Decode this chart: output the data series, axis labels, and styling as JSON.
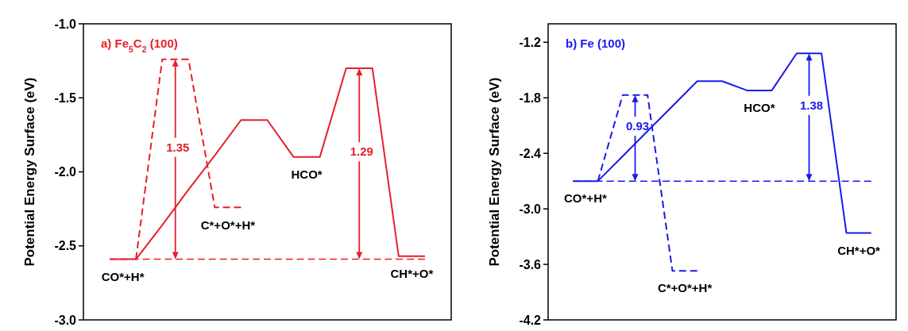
{
  "chart_data": [
    {
      "type": "line",
      "title": "a)  Fe$_{5}$C$_{2}$ (100)",
      "ylabel": "Potential Energy Surface (eV)",
      "categories": [
        null,
        null,
        null,
        null,
        null,
        null,
        null,
        null,
        null,
        null,
        null,
        null,
        null
      ],
      "ylim": [
        -3,
        -1
      ],
      "yticks": [
        {
          "value": -1,
          "label": "-1.0"
        },
        {
          "value": -1.5,
          "label": "-1.5"
        },
        {
          "value": -2,
          "label": "-2.0"
        },
        {
          "value": -2.5,
          "label": "-2.5"
        },
        {
          "value": -3,
          "label": "-3.0"
        }
      ],
      "tick_labels": "y",
      "grid": false,
      "marker": "none",
      "series": [
        {
          "color": "#e6202a",
          "line_style": "solid",
          "values": [
            -2.59,
            -2.59,
            -2.36,
            -2.12,
            -1.89,
            -1.65,
            -1.65,
            -1.9,
            -1.9,
            -1.3,
            -1.3,
            -2.57,
            -2.57
          ],
          "value_labels": [
            null,
            "CO*+H*",
            null,
            null,
            null,
            null,
            null,
            null,
            "HCO*",
            null,
            null,
            null,
            "CH*+O*"
          ]
        },
        {
          "color": "#e6202a",
          "line_style": "dashed",
          "values": [
            null,
            -2.59,
            -1.24,
            -1.24,
            -2.24,
            -2.24,
            null,
            null,
            null,
            null,
            null,
            null,
            null
          ],
          "value_labels": [
            null,
            null,
            null,
            null,
            null,
            "C*+O*+H*",
            null,
            null,
            null,
            null,
            null,
            null,
            null
          ]
        }
      ],
      "ref_lines": [
        {
          "axis": "y",
          "value": -2.59,
          "color": "#e6202a",
          "line_style": "dashed"
        }
      ],
      "annotations": [
        "1.29",
        "1.35"
      ]
    },
    {
      "type": "line",
      "title": "b) Fe (100)",
      "ylabel": "Potential Energy Surface (eV)",
      "categories": [
        null,
        null,
        null,
        null,
        null,
        null,
        null,
        null,
        null,
        null,
        null,
        null,
        null
      ],
      "ylim": [
        -4.2,
        -1.0
      ],
      "yticks": [
        {
          "value": -1.2,
          "label": "-1.2"
        },
        {
          "value": -1.8,
          "label": "-1.8"
        },
        {
          "value": -2.4,
          "label": "-2.4"
        },
        {
          "value": -3,
          "label": "-3.0"
        },
        {
          "value": -3.6,
          "label": "-3.6"
        },
        {
          "value": -4.2,
          "label": "-4.2"
        }
      ],
      "tick_labels": "y",
      "grid": false,
      "marker": "none",
      "series": [
        {
          "color": "#1a1aef",
          "line_style": "solid",
          "values": [
            -2.7,
            -2.7,
            -2.43,
            -2.16,
            -1.89,
            -1.62,
            -1.62,
            -1.72,
            -1.72,
            -1.32,
            -1.32,
            -3.26,
            -3.26
          ],
          "value_labels": [
            null,
            "CO*+H*",
            null,
            null,
            null,
            null,
            null,
            null,
            "HCO*",
            null,
            null,
            null,
            "CH*+O*"
          ]
        },
        {
          "color": "#1a1aef",
          "line_style": "dashed",
          "values": [
            null,
            -2.7,
            -1.77,
            -1.77,
            -3.67,
            -3.67,
            null,
            null,
            null,
            null,
            null,
            null,
            null
          ],
          "value_labels": [
            null,
            null,
            null,
            null,
            null,
            "C*+O*+H*",
            null,
            null,
            null,
            null,
            null,
            null,
            null
          ]
        }
      ],
      "ref_lines": [
        {
          "axis": "y",
          "value": -2.7,
          "color": "#1a1aef",
          "line_style": "dashed"
        }
      ],
      "annotations": [
        "1.38",
        "0.93"
      ]
    }
  ]
}
